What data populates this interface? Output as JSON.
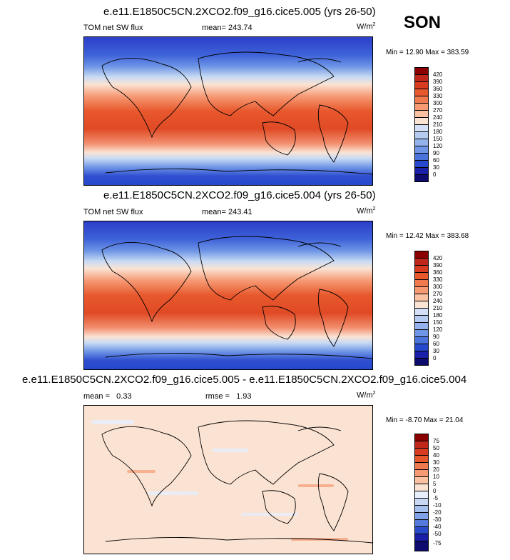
{
  "season": "SON",
  "chart_data": [
    {
      "type": "heatmap",
      "title": "e.e11.E1850C5CN.2XCO2.f09_g16.cice5.005 (yrs 26-50)",
      "left_label": "TOM net SW flux",
      "center_label": "mean= 243.74",
      "units": "W/m",
      "units_sup": "2",
      "minmax": "Min = 12.90 Max = 383.59",
      "levels": [
        "420",
        "390",
        "360",
        "330",
        "300",
        "270",
        "240",
        "210",
        "180",
        "150",
        "120",
        "90",
        "60",
        "30",
        "0"
      ],
      "colors": [
        "#8b0000",
        "#c1261a",
        "#d93b20",
        "#e8582d",
        "#f07a50",
        "#f69a74",
        "#fac1a2",
        "#fbe3d3",
        "#d3e0f5",
        "#b6cbf0",
        "#94b3ec",
        "#6f96e6",
        "#4a73dc",
        "#2548cc",
        "#1a1fa8",
        "#0d0c6e"
      ]
    },
    {
      "type": "heatmap",
      "title": "e.e11.E1850C5CN.2XCO2.f09_g16.cice5.004 (yrs 26-50)",
      "left_label": "TOM net SW flux",
      "center_label": "mean= 243.41",
      "units": "W/m",
      "units_sup": "2",
      "minmax": "Min = 12.42 Max = 383.68",
      "levels": [
        "420",
        "390",
        "360",
        "330",
        "300",
        "270",
        "240",
        "210",
        "180",
        "150",
        "120",
        "90",
        "60",
        "30",
        "0"
      ],
      "colors": [
        "#8b0000",
        "#c1261a",
        "#d93b20",
        "#e8582d",
        "#f07a50",
        "#f69a74",
        "#fac1a2",
        "#fbe3d3",
        "#d3e0f5",
        "#b6cbf0",
        "#94b3ec",
        "#6f96e6",
        "#4a73dc",
        "#2548cc",
        "#1a1fa8",
        "#0d0c6e"
      ]
    },
    {
      "type": "heatmap",
      "title": "e.e11.E1850C5CN.2XCO2.f09_g16.cice5.005 - e.e11.E1850C5CN.2XCO2.f09_g16.cice5.004",
      "left_label": "mean =   0.33",
      "center_label": "rmse =   1.93",
      "units": "W/m",
      "units_sup": "2",
      "minmax": "Min = -8.70 Max = 21.04",
      "levels": [
        "75",
        "50",
        "40",
        "30",
        "20",
        "10",
        "5",
        "0",
        "-5",
        "-10",
        "-20",
        "-30",
        "-40",
        "-50",
        "-75"
      ],
      "colors": [
        "#8b0000",
        "#c1261a",
        "#d93b20",
        "#e8582d",
        "#f07a50",
        "#f69a74",
        "#fac1a2",
        "#fbe3d3",
        "#e6eefb",
        "#c9d9f5",
        "#a7c1ef",
        "#7fa2e8",
        "#5479dc",
        "#2a4bc9",
        "#1a1fa8",
        "#0d0c6e"
      ]
    }
  ]
}
